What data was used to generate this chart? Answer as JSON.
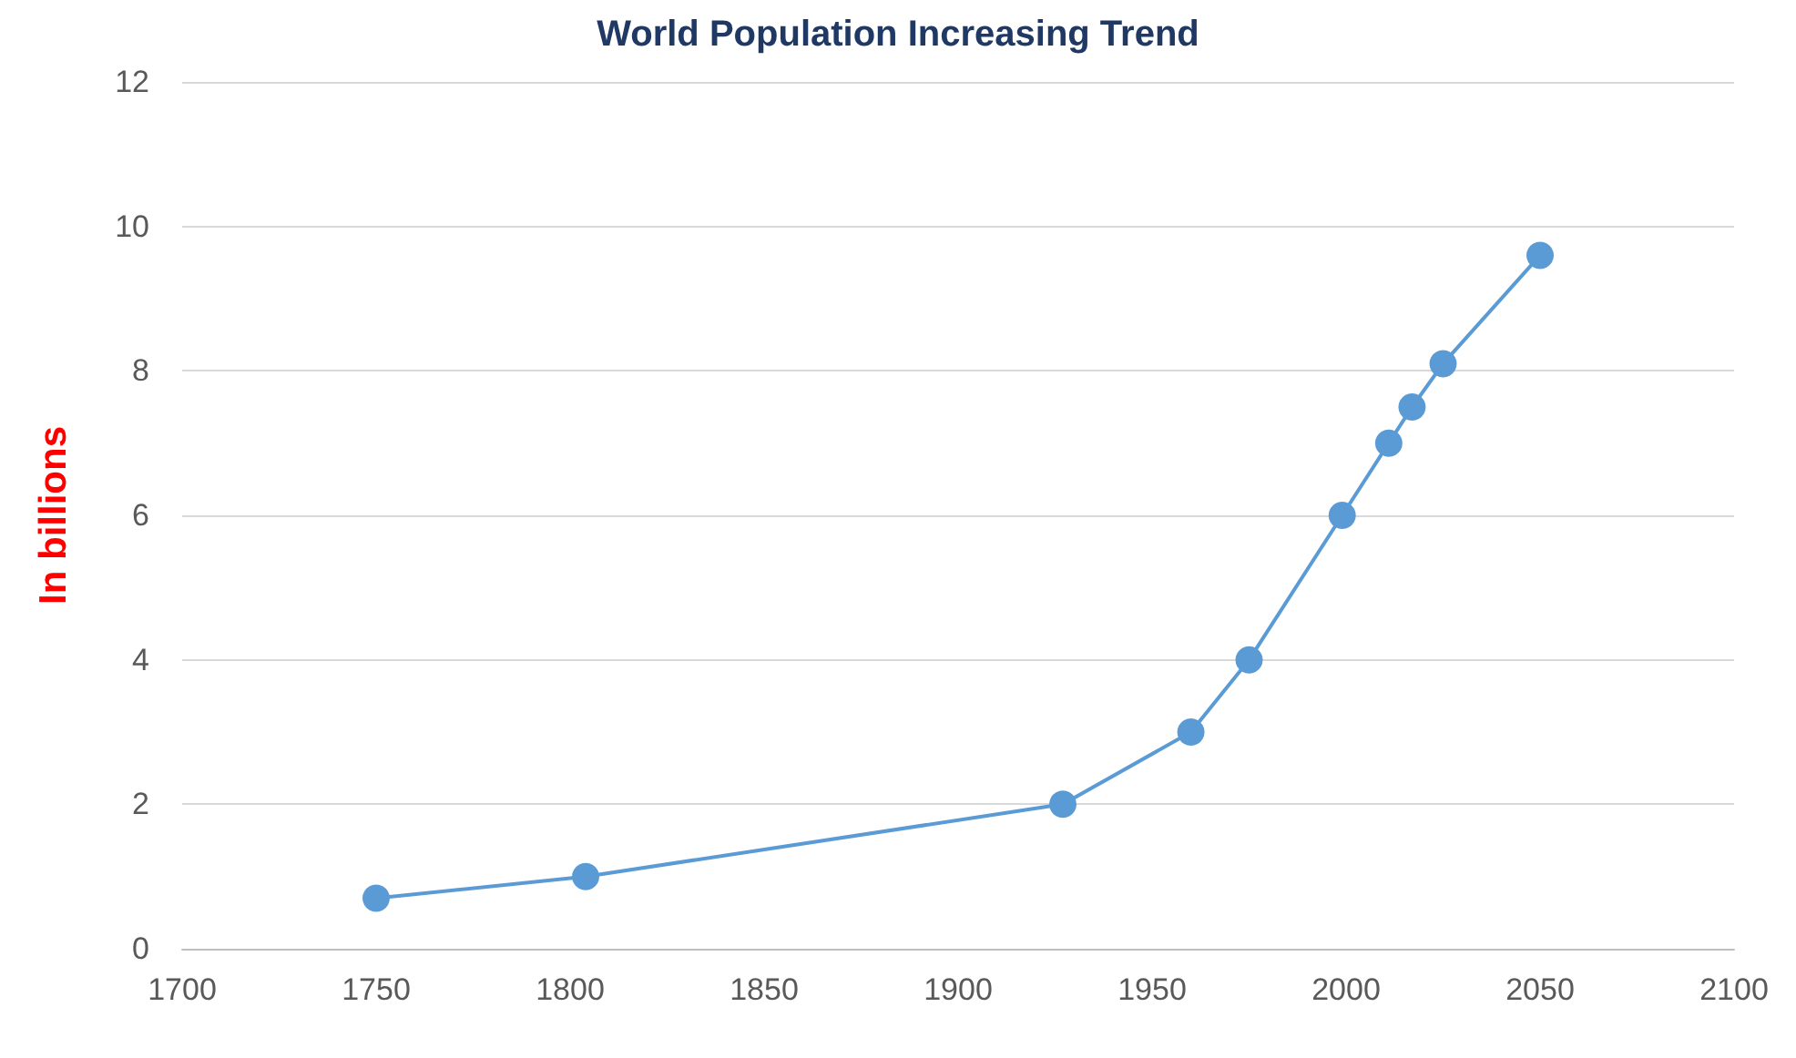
{
  "chart_data": {
    "type": "line",
    "title": "World Population Increasing Trend",
    "ylabel": "In billions",
    "x": [
      1750,
      1804,
      1927,
      1960,
      1975,
      1999,
      2011,
      2017,
      2025,
      2050
    ],
    "series": [
      {
        "color": "#5b9bd5",
        "values": [
          0.7,
          1,
          2,
          3,
          4,
          6,
          7,
          7.5,
          8.1,
          9.6
        ]
      }
    ],
    "xlim": [
      1700,
      2100
    ],
    "xticks": [
      1700,
      1750,
      1800,
      1850,
      1900,
      1950,
      2000,
      2050,
      2100
    ],
    "ylim": [
      0,
      12
    ],
    "yticks": [
      0,
      2,
      4,
      6,
      8,
      10,
      12
    ],
    "grid": "y",
    "marker": "circle",
    "line_style": "solid"
  }
}
